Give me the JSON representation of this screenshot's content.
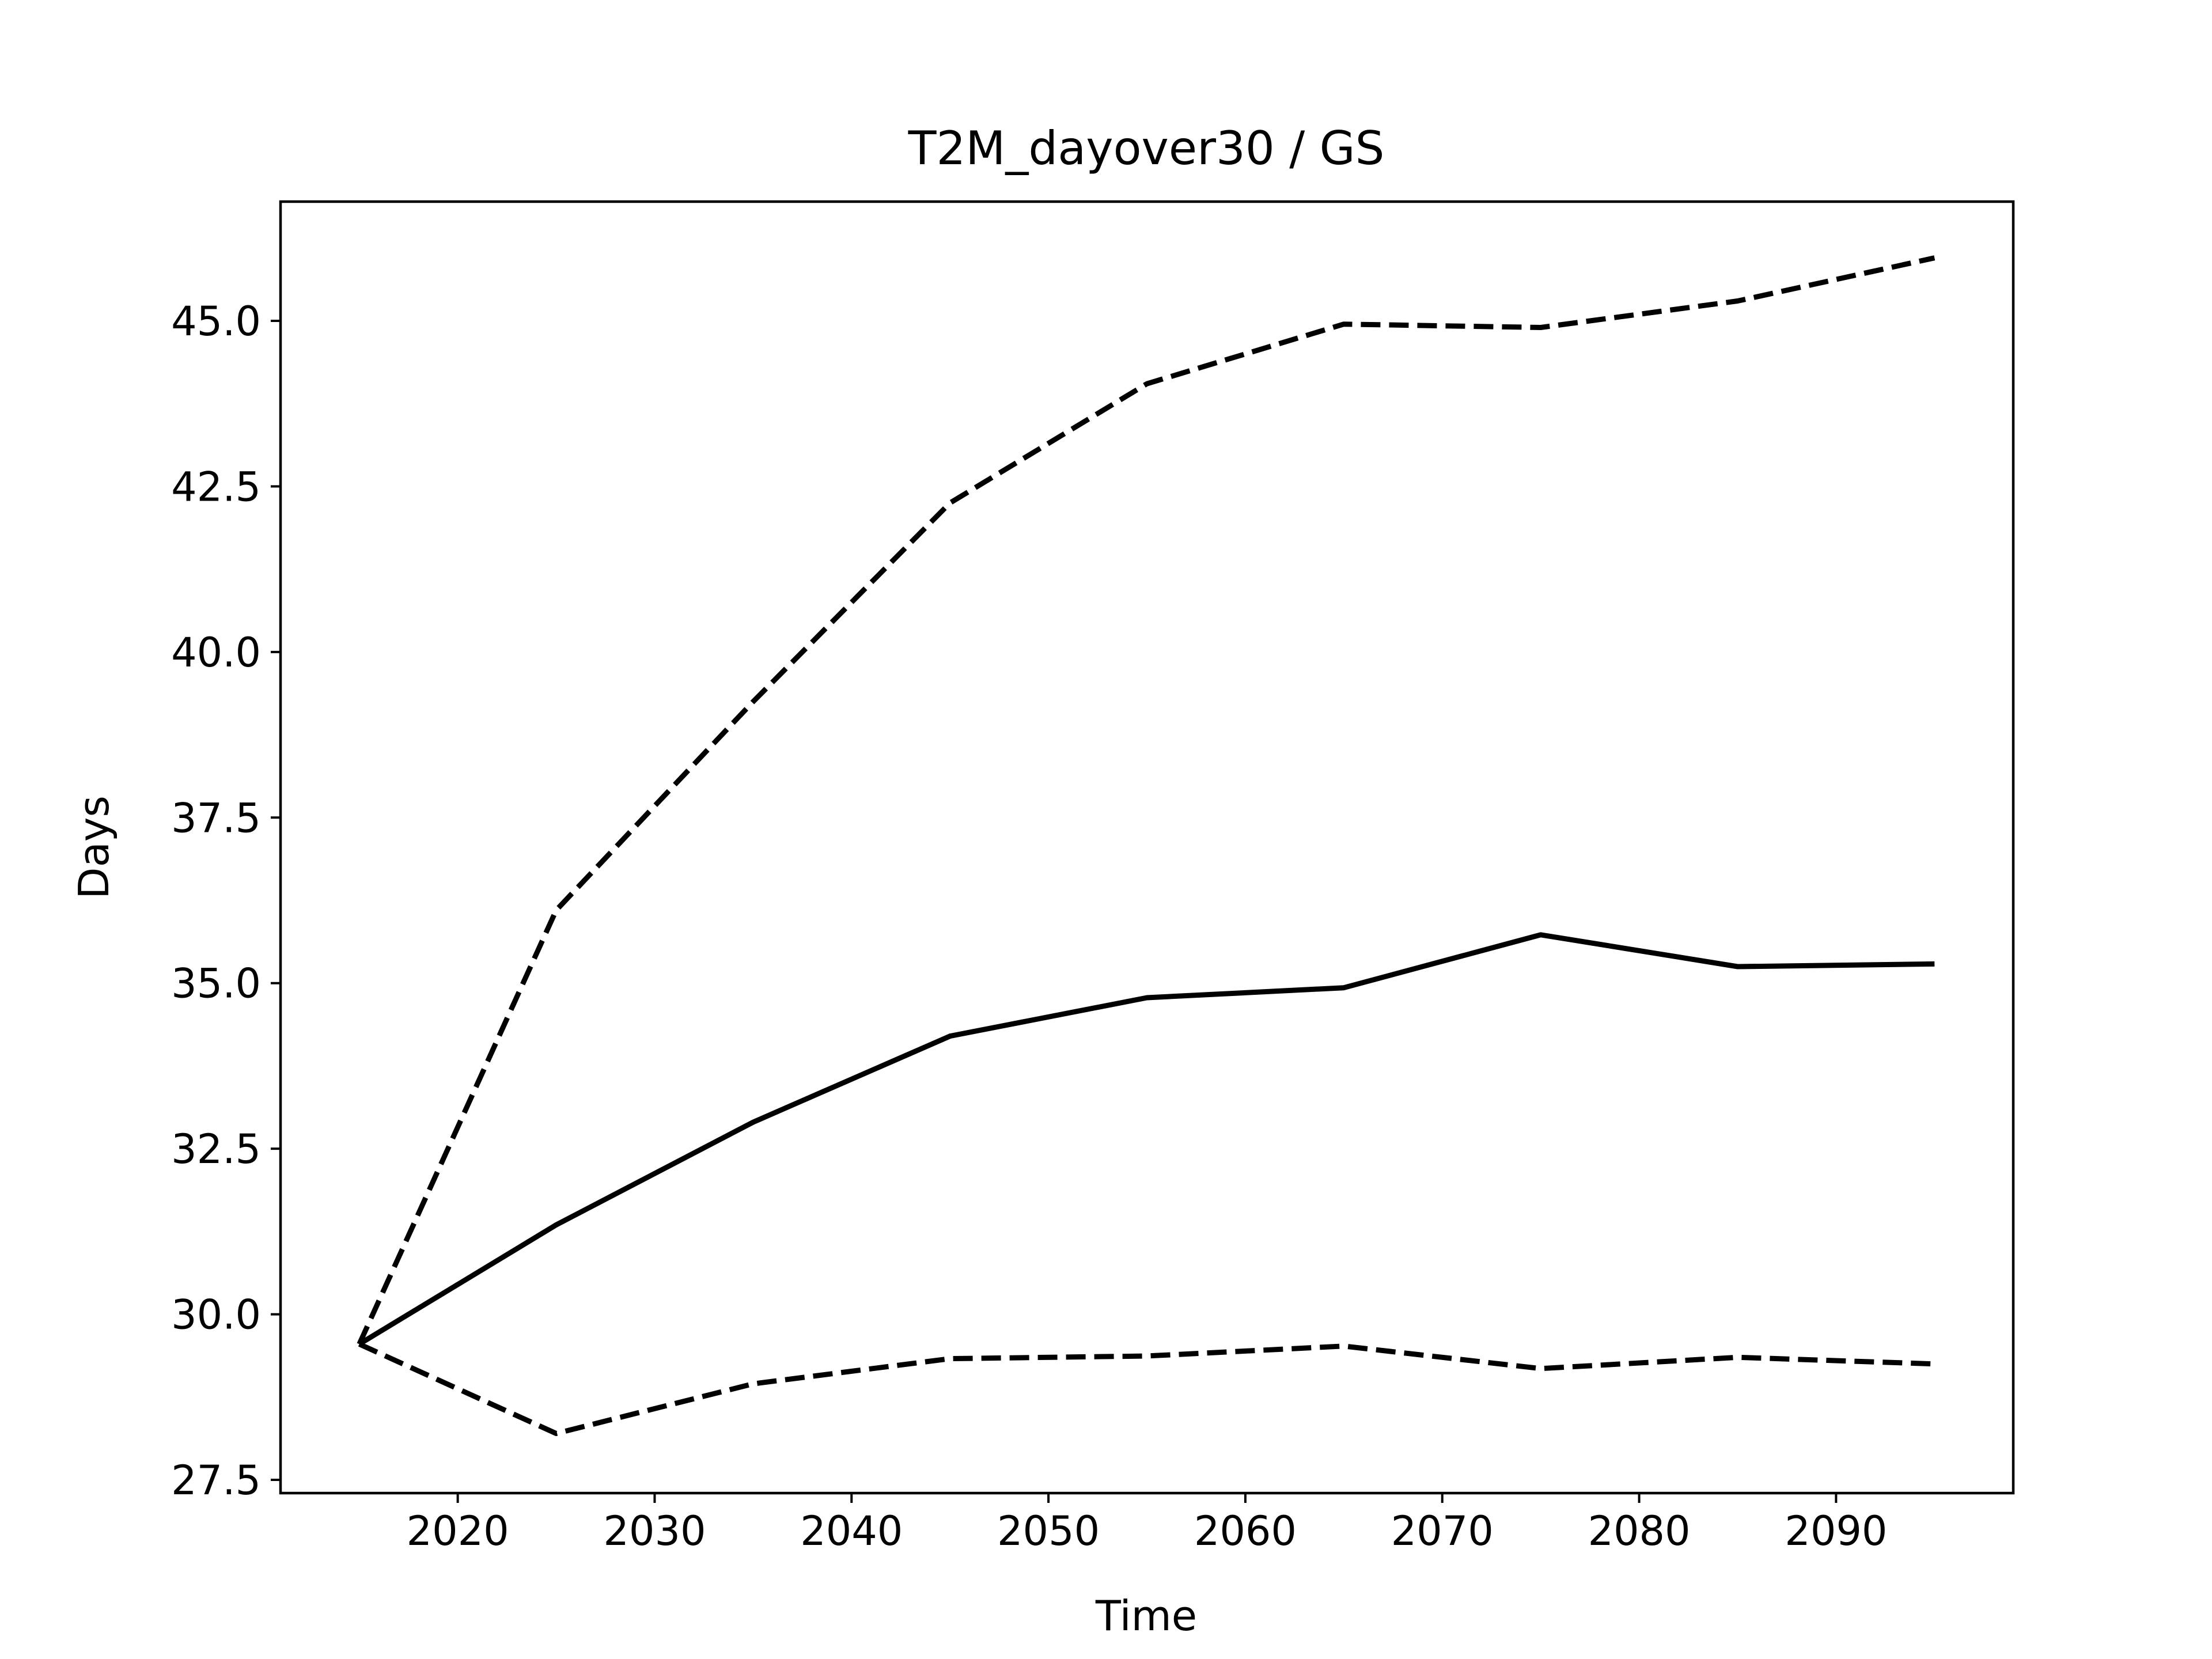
{
  "chart_data": {
    "type": "line",
    "title": "T2M_dayover30 / GS",
    "xlabel": "Time",
    "ylabel": "Days",
    "xlim": [
      2011,
      2099
    ],
    "ylim": [
      27.3,
      46.8
    ],
    "xticks": [
      2020,
      2030,
      2040,
      2050,
      2060,
      2070,
      2080,
      2090
    ],
    "xtick_labels": [
      "2020",
      "2030",
      "2040",
      "2050",
      "2060",
      "2070",
      "2080",
      "2090"
    ],
    "yticks": [
      27.5,
      30.0,
      32.5,
      35.0,
      37.5,
      40.0,
      42.5,
      45.0
    ],
    "ytick_labels": [
      "27.5",
      "30.0",
      "32.5",
      "35.0",
      "37.5",
      "40.0",
      "42.5",
      "45.0"
    ],
    "grid": false,
    "x": [
      2015,
      2025,
      2035,
      2045,
      2055,
      2065,
      2075,
      2085,
      2095
    ],
    "series": [
      {
        "values": [
          29.55,
          36.1,
          39.25,
          42.25,
          44.05,
          44.95,
          44.9,
          45.3,
          45.95
        ],
        "style": "dashed",
        "color": "#000000"
      },
      {
        "values": [
          29.55,
          31.35,
          32.9,
          34.2,
          34.78,
          34.93,
          35.73,
          35.25,
          35.29
        ],
        "style": "solid",
        "color": "#000000"
      },
      {
        "values": [
          29.55,
          28.2,
          28.95,
          29.33,
          29.37,
          29.52,
          29.18,
          29.35,
          29.25
        ],
        "style": "dashed",
        "color": "#000000"
      }
    ]
  }
}
